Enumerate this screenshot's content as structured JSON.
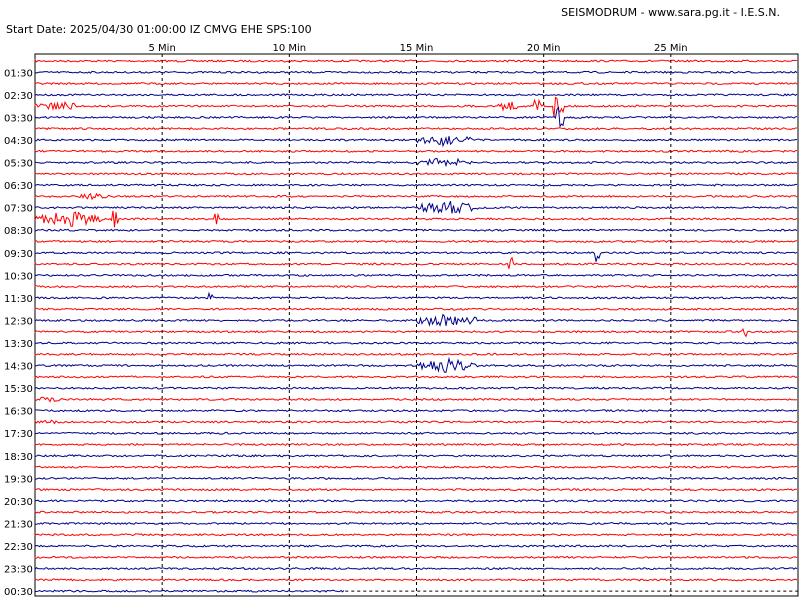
{
  "header": {
    "title": "SEISMODRUM - www.sara.pg.it - I.E.S.N.",
    "subtitle": "Start Date: 2025/04/30 01:00:00 IZ CMVG EHE SPS:100"
  },
  "chart_data": {
    "type": "line",
    "xlabel": "",
    "ylabel": "",
    "x_range_min": [
      0,
      30
    ],
    "x_tick_labels": [
      "5 Min",
      "10 Min",
      "15 Min",
      "20 Min",
      "25 Min"
    ],
    "x_ticks_min": [
      5,
      10,
      15,
      20,
      25
    ],
    "hour_labels": [
      "01:30",
      "02:30",
      "03:30",
      "04:30",
      "05:30",
      "06:30",
      "07:30",
      "08:30",
      "09:30",
      "10:30",
      "11:30",
      "12:30",
      "13:30",
      "14:30",
      "15:30",
      "16:30",
      "17:30",
      "18:30",
      "19:30",
      "20:30",
      "21:30",
      "22:30",
      "23:30",
      "00:30"
    ],
    "trace_count": 48,
    "last_trace_end_min": 12.2,
    "grid": true,
    "colors": {
      "odd_trace": "#ff0000",
      "even_trace": "#00008b",
      "grid": "#000000"
    },
    "events": [
      {
        "trace": 4,
        "start_min": 0.0,
        "end_min": 1.8,
        "amp": 5,
        "kind": "burst"
      },
      {
        "trace": 4,
        "start_min": 18.2,
        "end_min": 19.0,
        "amp": 6,
        "kind": "burst"
      },
      {
        "trace": 4,
        "start_min": 19.6,
        "end_min": 20.0,
        "amp": 10,
        "kind": "spike"
      },
      {
        "trace": 4,
        "start_min": 20.4,
        "end_min": 20.8,
        "amp": 11,
        "kind": "spike"
      },
      {
        "trace": 5,
        "start_min": 20.5,
        "end_min": 20.8,
        "amp": 12,
        "kind": "spike"
      },
      {
        "trace": 7,
        "start_min": 15.0,
        "end_min": 17.2,
        "amp": 6,
        "kind": "burst"
      },
      {
        "trace": 9,
        "start_min": 15.0,
        "end_min": 17.2,
        "amp": 5,
        "kind": "burst"
      },
      {
        "trace": 12,
        "start_min": 1.6,
        "end_min": 3.0,
        "amp": 3,
        "kind": "burst"
      },
      {
        "trace": 13,
        "start_min": 15.0,
        "end_min": 17.4,
        "amp": 7,
        "kind": "burst"
      },
      {
        "trace": 14,
        "start_min": 0.0,
        "end_min": 2.6,
        "amp": 8,
        "kind": "burst"
      },
      {
        "trace": 14,
        "start_min": 3.0,
        "end_min": 3.3,
        "amp": 9,
        "kind": "spike"
      },
      {
        "trace": 14,
        "start_min": 7.0,
        "end_min": 7.2,
        "amp": 6,
        "kind": "spike"
      },
      {
        "trace": 17,
        "start_min": 22.0,
        "end_min": 22.2,
        "amp": 10,
        "kind": "spike"
      },
      {
        "trace": 18,
        "start_min": 18.6,
        "end_min": 18.8,
        "amp": 9,
        "kind": "spike"
      },
      {
        "trace": 21,
        "start_min": 6.8,
        "end_min": 7.0,
        "amp": 7,
        "kind": "spike"
      },
      {
        "trace": 23,
        "start_min": 15.0,
        "end_min": 17.4,
        "amp": 7,
        "kind": "burst"
      },
      {
        "trace": 24,
        "start_min": 27.8,
        "end_min": 28.0,
        "amp": 7,
        "kind": "spike"
      },
      {
        "trace": 27,
        "start_min": 15.0,
        "end_min": 17.4,
        "amp": 7,
        "kind": "burst"
      },
      {
        "trace": 30,
        "start_min": 0.0,
        "end_min": 1.0,
        "amp": 3,
        "kind": "burst"
      },
      {
        "trace": 32,
        "start_min": 0.0,
        "end_min": 1.2,
        "amp": 3,
        "kind": "burst"
      }
    ]
  }
}
